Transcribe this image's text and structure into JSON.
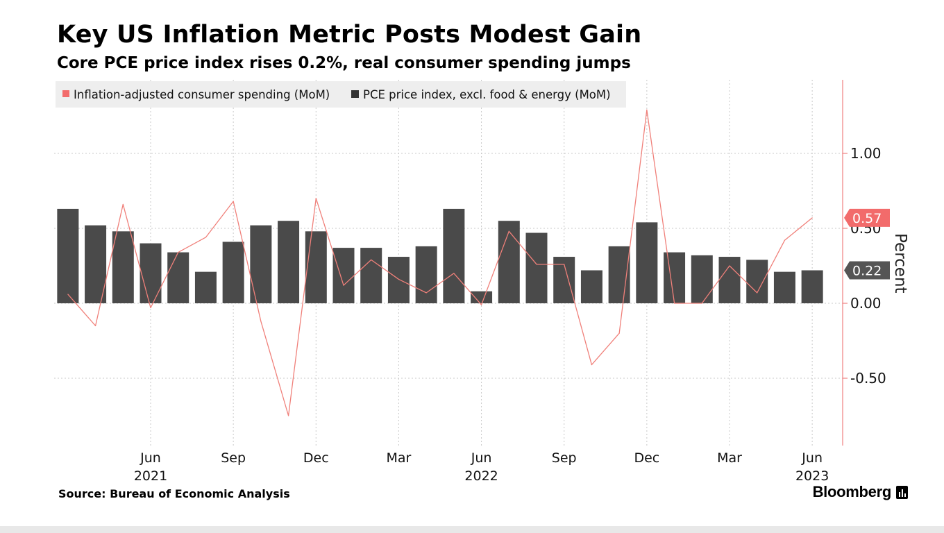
{
  "header": {
    "title": "Key US Inflation Metric Posts Modest Gain",
    "subtitle": "Core PCE price index rises 0.2%, real consumer spending jumps"
  },
  "footer": {
    "source": "Source: Bureau of Economic Analysis",
    "brand": "Bloomberg"
  },
  "colors": {
    "bar": "#4a4a4a",
    "line": "#f0807a",
    "line_tag": "#f26b6b",
    "bar_tag": "#555555",
    "grid": "#c8c8c8",
    "axis": "#f08080",
    "legend_bg": "#eeeeee"
  },
  "chart_data": {
    "type": "bar",
    "ylabel": "Percent",
    "ylim": [
      -0.95,
      1.5
    ],
    "yticks": [
      -0.5,
      0.0,
      0.5,
      1.0
    ],
    "ytick_labels": [
      "-0.50",
      "0.00",
      "0.50",
      "1.00"
    ],
    "grid": true,
    "y_axis_side": "right",
    "legend_placement": "top-left",
    "months": [
      "2021-03",
      "2021-04",
      "2021-05",
      "2021-06",
      "2021-07",
      "2021-08",
      "2021-09",
      "2021-10",
      "2021-11",
      "2021-12",
      "2022-01",
      "2022-02",
      "2022-03",
      "2022-04",
      "2022-05",
      "2022-06",
      "2022-07",
      "2022-08",
      "2022-09",
      "2022-10",
      "2022-11",
      "2022-12",
      "2023-01",
      "2023-02",
      "2023-03",
      "2023-04",
      "2023-05",
      "2023-06"
    ],
    "x_tick_labels": [
      {
        "month": "2021-06",
        "label": "Jun"
      },
      {
        "month": "2021-09",
        "label": "Sep"
      },
      {
        "month": "2021-12",
        "label": "Dec"
      },
      {
        "month": "2022-03",
        "label": "Mar"
      },
      {
        "month": "2022-06",
        "label": "Jun"
      },
      {
        "month": "2022-09",
        "label": "Sep"
      },
      {
        "month": "2022-12",
        "label": "Dec"
      },
      {
        "month": "2023-03",
        "label": "Mar"
      },
      {
        "month": "2023-06",
        "label": "Jun"
      }
    ],
    "x_year_labels": [
      {
        "month": "2021-06",
        "label": "2021"
      },
      {
        "month": "2022-06",
        "label": "2022"
      },
      {
        "month": "2023-06",
        "label": "2023"
      }
    ],
    "series": [
      {
        "name": "PCE price index, excl. food & energy (MoM)",
        "kind": "bar",
        "values": [
          0.63,
          0.52,
          0.48,
          0.4,
          0.34,
          0.21,
          0.41,
          0.52,
          0.55,
          0.48,
          0.37,
          0.37,
          0.31,
          0.38,
          0.63,
          0.08,
          0.55,
          0.47,
          0.31,
          0.22,
          0.38,
          0.54,
          0.34,
          0.32,
          0.31,
          0.29,
          0.21,
          0.22
        ],
        "last_value_label": "0.22"
      },
      {
        "name": "Inflation-adjusted consumer spending (MoM)",
        "kind": "line",
        "values": [
          0.06,
          -0.15,
          0.66,
          -0.03,
          0.34,
          0.44,
          0.68,
          -0.12,
          -0.75,
          0.7,
          0.12,
          0.29,
          0.16,
          0.07,
          0.2,
          -0.01,
          0.48,
          0.26,
          0.26,
          -0.41,
          -0.2,
          1.29,
          0.0,
          0.0,
          0.25,
          0.07,
          0.42,
          0.57
        ],
        "last_value_label": "0.57"
      }
    ]
  }
}
